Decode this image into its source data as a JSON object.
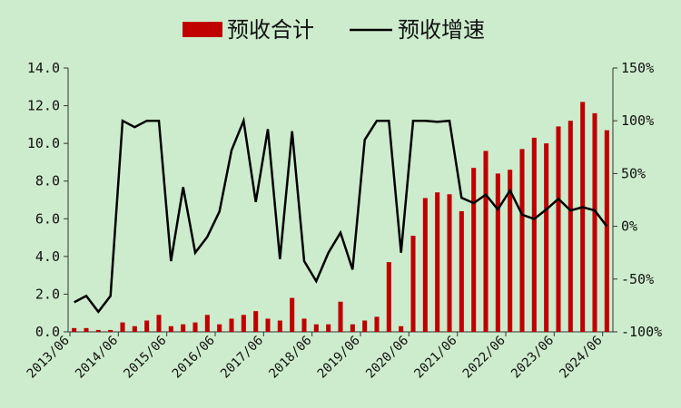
{
  "chart_data": {
    "type": "bar",
    "legend": [
      {
        "label": "预收合计",
        "kind": "bar",
        "color": "#c00000"
      },
      {
        "label": "预收增速",
        "kind": "line",
        "color": "#000000"
      }
    ],
    "legend_position": "top-center",
    "y_left": {
      "ylim": [
        0,
        14
      ],
      "ticks": [
        "0.0",
        "2.0",
        "4.0",
        "6.0",
        "8.0",
        "10.0",
        "12.0",
        "14.0"
      ]
    },
    "y_right": {
      "ylim": [
        -100,
        150
      ],
      "ticks": [
        "-100%",
        "-50%",
        "0%",
        "50%",
        "100%",
        "150%"
      ]
    },
    "x_tick_labels": [
      "2013/06",
      "2014/06",
      "2015/06",
      "2016/06",
      "2017/06",
      "2018/06",
      "2019/06",
      "2020/06",
      "2021/06",
      "2022/06",
      "2023/06",
      "2024/06"
    ],
    "series": [
      {
        "name": "预收合计",
        "type": "bar",
        "axis": "left",
        "values": [
          0.2,
          0.2,
          0.1,
          0.1,
          0.5,
          0.3,
          0.6,
          0.9,
          0.3,
          0.4,
          0.5,
          0.9,
          0.4,
          0.7,
          0.9,
          1.1,
          0.7,
          0.6,
          1.8,
          0.7,
          0.4,
          0.4,
          1.6,
          0.4,
          0.6,
          0.8,
          3.7,
          0.3,
          5.1,
          7.1,
          7.4,
          7.3,
          6.4,
          8.7,
          9.6,
          8.4,
          8.6,
          9.7,
          10.3,
          10.0,
          10.9,
          11.2,
          12.2,
          11.6,
          10.7
        ]
      },
      {
        "name": "预收增速",
        "type": "line",
        "axis": "right",
        "values": [
          -72,
          -66,
          -81,
          -66,
          100,
          94,
          100,
          100,
          -33,
          37,
          -25,
          -10,
          14,
          72,
          100,
          23,
          92,
          -31,
          90,
          -33,
          -52,
          -25,
          -6,
          -41,
          82,
          100,
          100,
          -25,
          100,
          100,
          99,
          100,
          27,
          22,
          30,
          16,
          34,
          11,
          7,
          16,
          26,
          15,
          18,
          15,
          0
        ]
      }
    ]
  }
}
